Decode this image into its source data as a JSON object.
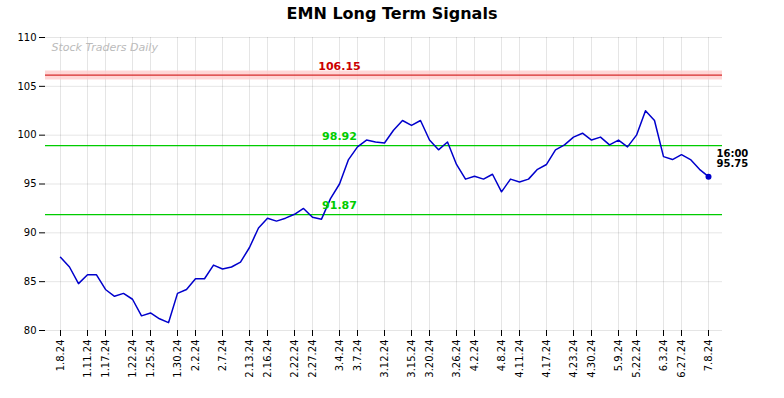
{
  "chart_data": {
    "type": "line",
    "title": "EMN Long Term Signals",
    "categories": [
      "1.8.24",
      null,
      null,
      "1.11.24",
      null,
      "1.17.24",
      null,
      null,
      "1.22.24",
      null,
      "1.25.24",
      null,
      null,
      "1.30.24",
      null,
      "2.2.24",
      null,
      null,
      "2.7.24",
      null,
      null,
      "2.13.24",
      null,
      "2.16.24",
      null,
      null,
      "2.22.24",
      null,
      "2.27.24",
      null,
      null,
      "3.4.24",
      null,
      "3.7.24",
      null,
      null,
      "3.12.24",
      null,
      null,
      "3.15.24",
      null,
      "3.20.24",
      null,
      null,
      "3.26.24",
      null,
      "4.2.24",
      null,
      null,
      "4.8.24",
      null,
      "4.11.24",
      null,
      null,
      "4.17.24",
      null,
      null,
      "4.23.24",
      null,
      "4.30.24",
      null,
      null,
      "5.9.24",
      null,
      "5.22.24",
      null,
      null,
      "6.3.24",
      null,
      "6.27.24",
      null,
      null,
      "7.8.24"
    ],
    "values": [
      87.5,
      86.5,
      84.8,
      85.7,
      85.7,
      84.2,
      83.5,
      83.8,
      83.2,
      81.5,
      81.8,
      81.2,
      80.8,
      83.8,
      84.2,
      85.3,
      85.3,
      86.7,
      86.3,
      86.5,
      87.0,
      88.5,
      90.5,
      91.5,
      91.2,
      91.5,
      91.9,
      92.5,
      91.6,
      91.4,
      93.5,
      95.0,
      97.5,
      98.8,
      99.5,
      99.3,
      99.2,
      100.5,
      101.5,
      101.0,
      101.5,
      99.5,
      98.5,
      99.3,
      97.0,
      95.5,
      95.8,
      95.5,
      96.0,
      94.2,
      95.5,
      95.2,
      95.5,
      96.5,
      97.0,
      98.5,
      99.0,
      99.8,
      100.2,
      99.5,
      99.8,
      99.0,
      99.5,
      98.8,
      100.0,
      102.5,
      101.5,
      97.8,
      97.5,
      98.0,
      97.5,
      96.5,
      95.75
    ],
    "color": "#0000cc",
    "ylim": [
      80,
      110
    ],
    "yticks": [
      80,
      85,
      90,
      95,
      100,
      105,
      110
    ],
    "grid": true,
    "hlines": [
      {
        "value": 106.15,
        "label": "106.15",
        "color": "#cc0000",
        "fill_color": "#ffcccc"
      },
      {
        "value": 98.92,
        "label": "98.92",
        "color": "#00cc00"
      },
      {
        "value": 91.87,
        "label": "91.87",
        "color": "#00cc00"
      }
    ],
    "annotation": "16:00\n95.75",
    "watermark": "Stock Traders Daily",
    "watermark_color": "#bbbbbb"
  }
}
